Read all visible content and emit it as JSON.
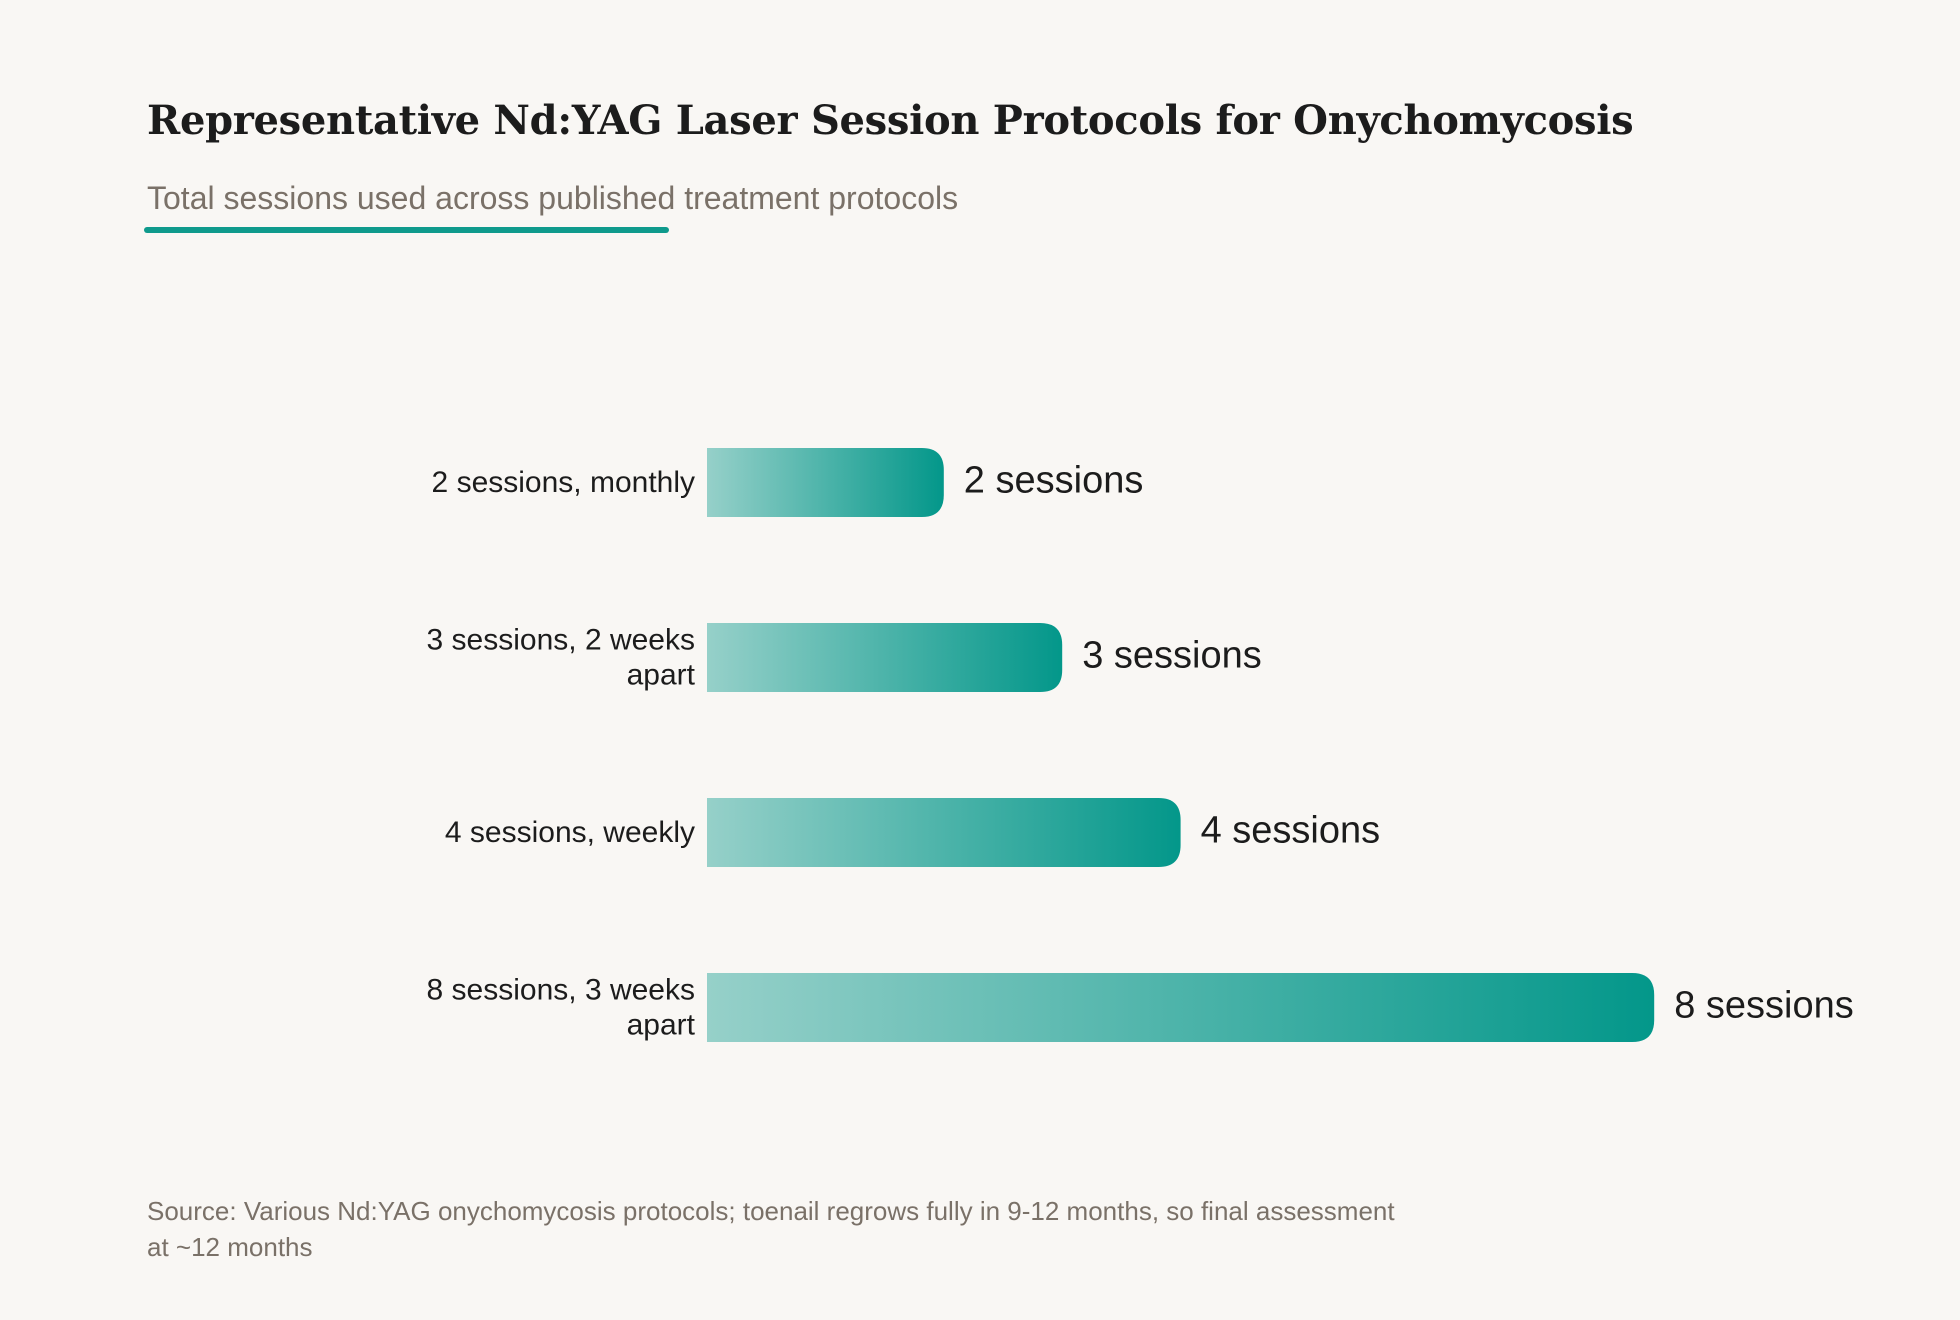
{
  "title": "Representative Nd:YAG Laser Session Protocols for Onychomycosis",
  "subtitle": "Total sessions used across published treatment protocols",
  "source": "Source: Various Nd:YAG onychomycosis protocols; toenail regrows fully in 9-12 months, so final assessment at ~12 months",
  "colors": {
    "background": "#f9f7f4",
    "accent": "#0f9a8c",
    "bar_start": "#96d0c9",
    "bar_end": "#03978a",
    "text": "#1c1c1c",
    "muted": "#7a7168"
  },
  "chart_data": {
    "type": "bar",
    "orientation": "horizontal",
    "title": "Representative Nd:YAG Laser Session Protocols for Onychomycosis",
    "subtitle": "Total sessions used across published treatment protocols",
    "xlabel": "",
    "ylabel": "",
    "grid": false,
    "legend": "none",
    "xlim": [
      0,
      8
    ],
    "categories": [
      [
        "2 sessions, monthly"
      ],
      [
        "3 sessions, 2 weeks",
        "apart"
      ],
      [
        "4 sessions, weekly"
      ],
      [
        "8 sessions, 3 weeks",
        "apart"
      ]
    ],
    "values": [
      2,
      3,
      4,
      8
    ],
    "value_labels": [
      "2 sessions",
      "3 sessions",
      "4 sessions",
      "8 sessions"
    ]
  }
}
